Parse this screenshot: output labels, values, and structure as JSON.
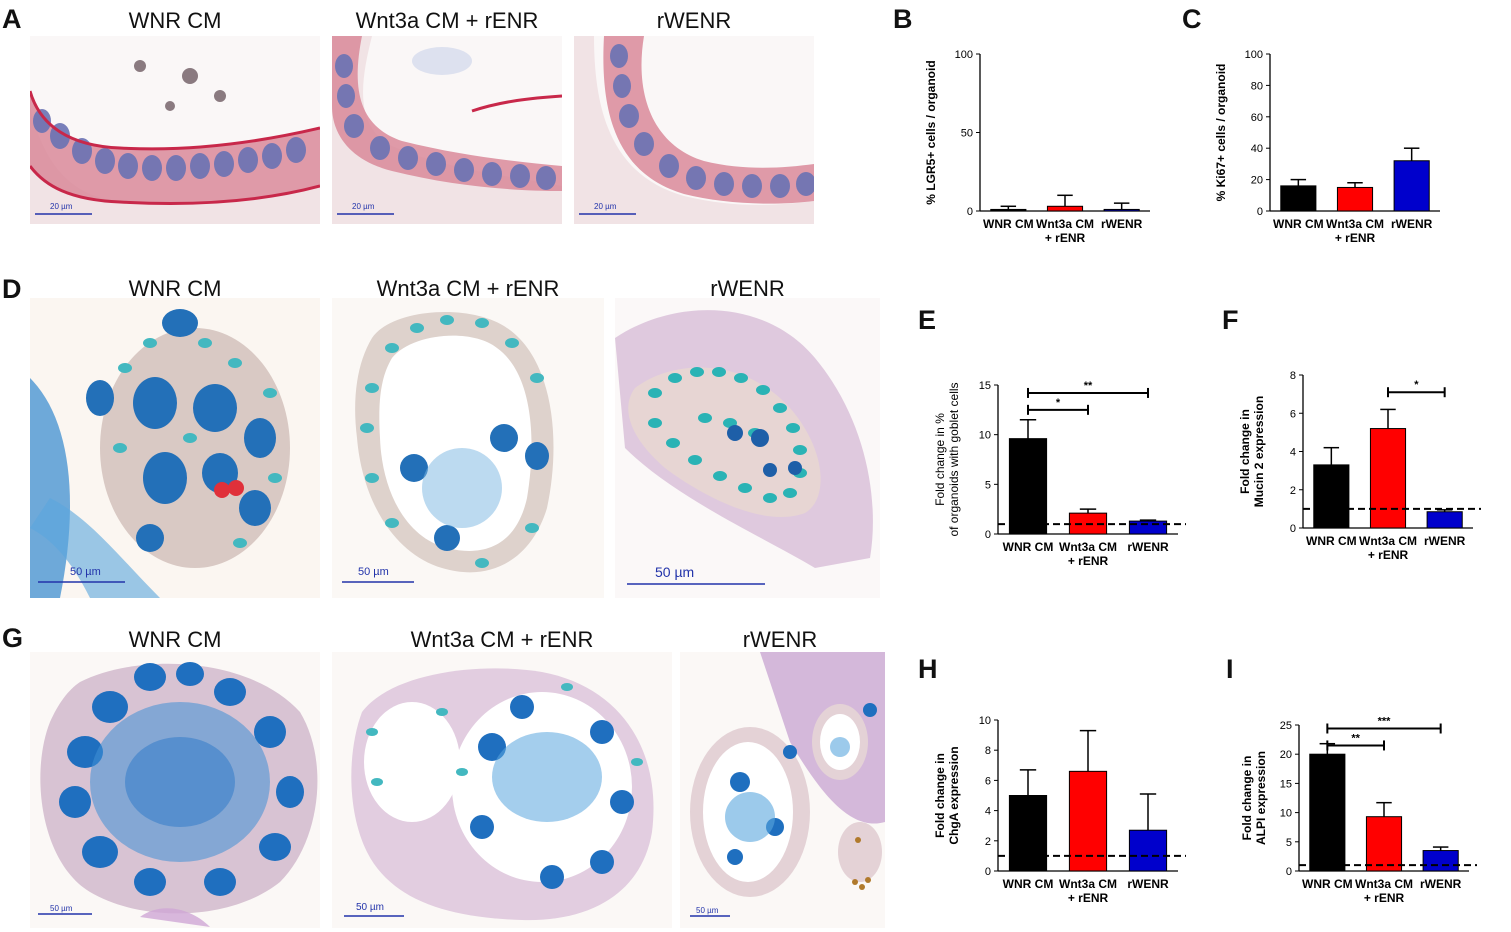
{
  "panels": {
    "A": {
      "letter": "A",
      "titles": [
        "WNR CM",
        "Wnt3a CM + rENR",
        "rWENR"
      ],
      "scalebar": "20 µm"
    },
    "B": {
      "letter": "B"
    },
    "C": {
      "letter": "C"
    },
    "D": {
      "letter": "D",
      "titles": [
        "WNR CM",
        "Wnt3a CM + rENR",
        "rWENR"
      ],
      "scalebars": [
        "50 µm",
        "50 µm",
        "50 µm"
      ]
    },
    "E": {
      "letter": "E"
    },
    "F": {
      "letter": "F"
    },
    "G": {
      "letter": "G",
      "titles": [
        "WNR CM",
        "Wnt3a CM + rENR",
        "rWENR"
      ],
      "scalebars": [
        "50 µm",
        "50 µm",
        "50 µm"
      ]
    },
    "H": {
      "letter": "H"
    },
    "I": {
      "letter": "I"
    }
  },
  "colors": {
    "wnr": "#000000",
    "wnt3a": "#ff0000",
    "rwenr": "#0000cc"
  },
  "chart_data": [
    {
      "id": "B",
      "type": "bar",
      "ylabel": "% LGR5+ cells / organoid",
      "ylim": [
        0,
        100
      ],
      "yticks": [
        0,
        50,
        100
      ],
      "categories": [
        "WNR CM",
        "Wnt3a CM\n+ rENR",
        "rWENR"
      ],
      "values": [
        1,
        3,
        1
      ],
      "errors": [
        2,
        7,
        4
      ],
      "reference_line": null,
      "significance": []
    },
    {
      "id": "C",
      "type": "bar",
      "ylabel": "% Ki67+ cells / organoid",
      "ylim": [
        0,
        100
      ],
      "yticks": [
        0,
        20,
        40,
        60,
        80,
        100
      ],
      "categories": [
        "WNR CM",
        "Wnt3a CM\n+ rENR",
        "rWENR"
      ],
      "values": [
        16,
        15,
        32
      ],
      "errors": [
        4,
        3,
        8
      ],
      "reference_line": null,
      "significance": []
    },
    {
      "id": "E",
      "type": "bar",
      "ylabel": "Fold change in %\nof organoids with goblet cells",
      "ylim": [
        0,
        15
      ],
      "yticks": [
        0,
        5,
        10,
        15
      ],
      "categories": [
        "WNR CM",
        "Wnt3a CM\n+ rENR",
        "rWENR"
      ],
      "values": [
        9.6,
        2.1,
        1.3
      ],
      "errors": [
        1.9,
        0.4,
        0.1
      ],
      "reference_line": 1,
      "significance": [
        {
          "from": 0,
          "to": 1,
          "label": "*",
          "y": 12.5
        },
        {
          "from": 0,
          "to": 2,
          "label": "**",
          "y": 14.2
        }
      ]
    },
    {
      "id": "F",
      "type": "bar",
      "ylabel": "Fold change in\nMucin 2 expression",
      "ylim": [
        0,
        8
      ],
      "yticks": [
        0,
        2,
        4,
        6,
        8
      ],
      "categories": [
        "WNR CM",
        "Wnt3a CM\n+ rENR",
        "rWENR"
      ],
      "values": [
        3.3,
        5.2,
        0.85
      ],
      "errors": [
        0.9,
        1.0,
        0.1
      ],
      "reference_line": 1,
      "significance": [
        {
          "from": 1,
          "to": 2,
          "label": "*",
          "y": 7.1
        }
      ]
    },
    {
      "id": "H",
      "type": "bar",
      "ylabel": "Fold change in\nChgA expression",
      "ylim": [
        0,
        10
      ],
      "yticks": [
        0,
        2,
        4,
        6,
        8,
        10
      ],
      "categories": [
        "WNR CM",
        "Wnt3a CM\n+ rENR",
        "rWENR"
      ],
      "values": [
        5.0,
        6.6,
        2.7
      ],
      "errors": [
        1.7,
        2.7,
        2.4
      ],
      "reference_line": 1,
      "significance": []
    },
    {
      "id": "I",
      "type": "bar",
      "ylabel": "Fold change in\nALPI expression",
      "ylim": [
        0,
        25
      ],
      "yticks": [
        0,
        5,
        10,
        15,
        20,
        25
      ],
      "categories": [
        "WNR CM",
        "Wnt3a CM\n+ rENR",
        "rWENR"
      ],
      "values": [
        20.0,
        9.3,
        3.5
      ],
      "errors": [
        1.8,
        2.4,
        0.6
      ],
      "reference_line": 1,
      "significance": [
        {
          "from": 0,
          "to": 1,
          "label": "**",
          "y": 21.5
        },
        {
          "from": 0,
          "to": 2,
          "label": "***",
          "y": 24.4
        }
      ]
    }
  ]
}
